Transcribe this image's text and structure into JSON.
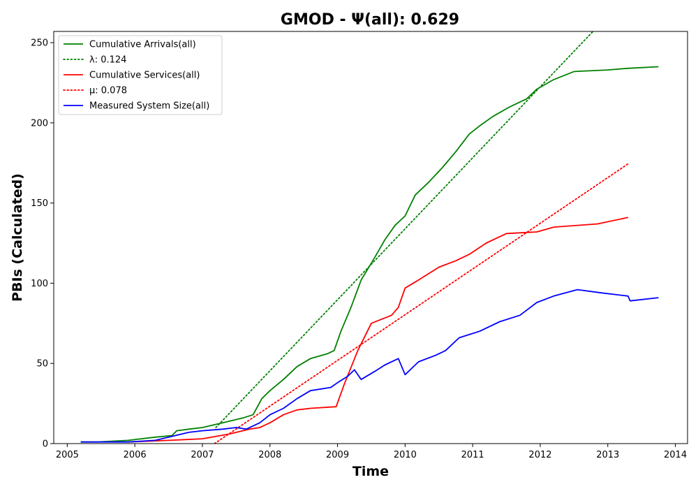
{
  "chart_data": {
    "type": "line",
    "title": "GMOD -  Ψ(all): 0.629",
    "xlabel": "Time",
    "ylabel": "PBIs (Calculated)",
    "xlim": [
      2004.8,
      2014.18
    ],
    "ylim": [
      0,
      257
    ],
    "x_ticks": [
      "2005",
      "2006",
      "2007",
      "2008",
      "2009",
      "2010",
      "2011",
      "2012",
      "2013",
      "2014"
    ],
    "y_ticks": [
      "0",
      "50",
      "100",
      "150",
      "200",
      "250"
    ],
    "legend_position": "top-left",
    "grid": false,
    "series": [
      {
        "name": "Cumulative Arrivals(all)",
        "color": "#008000",
        "style": "solid",
        "x": [
          2005.2,
          2005.45,
          2005.9,
          2006.3,
          2006.55,
          2006.62,
          2006.8,
          2007.0,
          2007.3,
          2007.6,
          2007.75,
          2007.88,
          2008.0,
          2008.2,
          2008.4,
          2008.6,
          2008.85,
          2008.95,
          2009.05,
          2009.2,
          2009.35,
          2009.55,
          2009.7,
          2009.85,
          2010.0,
          2010.15,
          2010.35,
          2010.55,
          2010.75,
          2010.95,
          2011.1,
          2011.3,
          2011.55,
          2011.8,
          2011.95,
          2012.2,
          2012.5,
          2013.0,
          2013.3,
          2013.75
        ],
        "y": [
          1,
          1,
          2,
          4,
          5,
          8,
          9,
          10,
          13,
          16,
          18,
          28,
          33,
          40,
          48,
          53,
          56,
          58,
          70,
          85,
          102,
          116,
          127,
          136,
          142,
          155,
          163,
          172,
          182,
          193,
          198,
          204,
          210,
          215,
          221,
          227,
          232,
          233,
          234,
          235
        ]
      },
      {
        "name": "λ: 0.124",
        "color": "#008000",
        "style": "dotted",
        "x": [
          2007.2,
          2012.78
        ],
        "y": [
          10,
          257
        ]
      },
      {
        "name": "Cumulative Services(all)",
        "color": "#ff0000",
        "style": "solid",
        "x": [
          2005.9,
          2006.5,
          2007.0,
          2007.4,
          2007.7,
          2007.85,
          2008.0,
          2008.2,
          2008.4,
          2008.6,
          2008.98,
          2009.1,
          2009.3,
          2009.5,
          2009.8,
          2009.9,
          2010.0,
          2010.2,
          2010.5,
          2010.75,
          2010.95,
          2011.2,
          2011.5,
          2011.95,
          2012.2,
          2012.85,
          2013.3
        ],
        "y": [
          1,
          2,
          3,
          6,
          9,
          10,
          13,
          18,
          21,
          22,
          23,
          37,
          58,
          75,
          80,
          85,
          97,
          102,
          110,
          114,
          118,
          125,
          131,
          132,
          135,
          137,
          141
        ]
      },
      {
        "name": "μ: 0.078",
        "color": "#ff0000",
        "style": "dotted",
        "x": [
          2007.18,
          2013.32
        ],
        "y": [
          0,
          175
        ]
      },
      {
        "name": "Measured System Size(all)",
        "color": "#0000ff",
        "style": "solid",
        "x": [
          2005.2,
          2005.45,
          2005.9,
          2006.3,
          2006.6,
          2006.8,
          2007.0,
          2007.3,
          2007.5,
          2007.65,
          2007.85,
          2008.0,
          2008.2,
          2008.4,
          2008.6,
          2008.9,
          2009.0,
          2009.15,
          2009.25,
          2009.35,
          2009.55,
          2009.7,
          2009.9,
          2010.0,
          2010.1,
          2010.2,
          2010.45,
          2010.6,
          2010.8,
          2010.95,
          2011.1,
          2011.4,
          2011.7,
          2011.95,
          2012.2,
          2012.55,
          2012.9,
          2013.3,
          2013.33,
          2013.75
        ],
        "y": [
          1,
          1,
          1,
          2,
          5,
          7,
          8,
          9,
          10,
          9,
          13,
          18,
          22,
          28,
          33,
          35,
          38,
          42,
          46,
          40,
          45,
          49,
          53,
          43,
          47,
          51,
          55,
          58,
          66,
          68,
          70,
          76,
          80,
          88,
          92,
          96,
          94,
          92,
          89,
          91
        ]
      }
    ]
  }
}
